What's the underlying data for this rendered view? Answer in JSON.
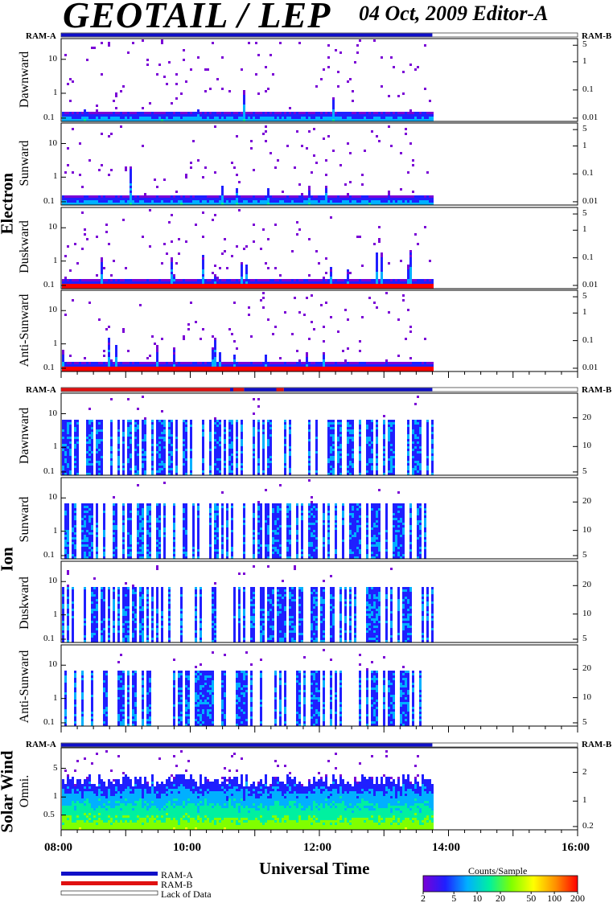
{
  "header": {
    "title": "GEOTAIL / LEP",
    "subtitle": "04 Oct, 2009   Editor-A"
  },
  "chart_data": {
    "type": "heatmap",
    "title": "GEOTAIL / LEP",
    "subtitle": "04 Oct, 2009   Editor-A",
    "xlabel": "Universal Time",
    "x_ticks": [
      "08:00",
      "10:00",
      "12:00",
      "14:00",
      "16:00"
    ],
    "x_range": [
      "08:00",
      "16:00"
    ],
    "data_end": "13:45",
    "colorbar": {
      "label": "Counts/Sample",
      "ticks": [
        "2",
        "5",
        "10",
        "20",
        "50",
        "100",
        "200"
      ],
      "colors": [
        "#7a00d6",
        "#1f1fff",
        "#00b0ff",
        "#00f0a0",
        "#80ff00",
        "#ffff00",
        "#ff9000",
        "#ff0000"
      ]
    },
    "groups": [
      {
        "name": "Electron",
        "ram_left": "RAM-A",
        "ram_right": "RAM-B",
        "panels": [
          {
            "name": "Dawnward",
            "left_ticks": [
              "10",
              "1",
              "0.1"
            ],
            "right_ticks": [
              "5",
              "1",
              "0.1",
              "0.01"
            ]
          },
          {
            "name": "Sunward",
            "left_ticks": [
              "10",
              "1",
              "0.1"
            ],
            "right_ticks": [
              "5",
              "1",
              "0.1",
              "0.01"
            ]
          },
          {
            "name": "Duskward",
            "left_ticks": [
              "10",
              "1",
              "0.1"
            ],
            "right_ticks": [
              "5",
              "1",
              "0.1",
              "0.01"
            ]
          },
          {
            "name": "Anti-Sunward",
            "left_ticks": [
              "10",
              "1",
              "0.1"
            ],
            "right_ticks": [
              "5",
              "1",
              "0.1",
              "0.01"
            ]
          }
        ]
      },
      {
        "name": "Ion",
        "ram_left": "RAM-A",
        "ram_right": "RAM-B",
        "panels": [
          {
            "name": "Dawnward",
            "left_ticks": [
              "10",
              "1",
              "0.1"
            ],
            "right_ticks": [
              "20",
              "10",
              "5"
            ]
          },
          {
            "name": "Sunward",
            "left_ticks": [
              "10",
              "1",
              "0.1"
            ],
            "right_ticks": [
              "20",
              "10",
              "5"
            ]
          },
          {
            "name": "Duskward",
            "left_ticks": [
              "10",
              "1",
              "0.1"
            ],
            "right_ticks": [
              "20",
              "10",
              "5"
            ]
          },
          {
            "name": "Anti-Sunward",
            "left_ticks": [
              "10",
              "1",
              "0.1"
            ],
            "right_ticks": [
              "20",
              "10",
              "5"
            ]
          }
        ]
      },
      {
        "name": "Solar Wind",
        "ram_left": "RAM-A",
        "ram_right": "RAM-B",
        "panels": [
          {
            "name": "Omni.",
            "left_ticks": [
              "5",
              "1",
              "0.5"
            ],
            "right_ticks": [
              "2",
              "1",
              "0.2"
            ]
          }
        ]
      }
    ],
    "ram_mode": {
      "electron": [
        {
          "from": "08:00",
          "to": "13:45",
          "mode": "RAM-A"
        }
      ],
      "ion": [
        {
          "from": "08:00",
          "to": "10:37",
          "mode": "RAM-B"
        },
        {
          "from": "10:37",
          "to": "10:40",
          "mode": "RAM-A"
        },
        {
          "from": "10:40",
          "to": "10:50",
          "mode": "RAM-B"
        },
        {
          "from": "10:50",
          "to": "11:20",
          "mode": "RAM-A"
        },
        {
          "from": "11:20",
          "to": "11:27",
          "mode": "RAM-B"
        },
        {
          "from": "11:27",
          "to": "13:45",
          "mode": "RAM-A"
        }
      ],
      "solar_wind": [
        {
          "from": "08:00",
          "to": "13:45",
          "mode": "RAM-A"
        }
      ]
    },
    "mode_legend": [
      "RAM-A",
      "RAM-B",
      "Lack of Data"
    ]
  },
  "legend_colors": {
    "RAM-A": "#1010c8",
    "RAM-B": "#e01010",
    "Lack of Data": "#ffffff"
  }
}
